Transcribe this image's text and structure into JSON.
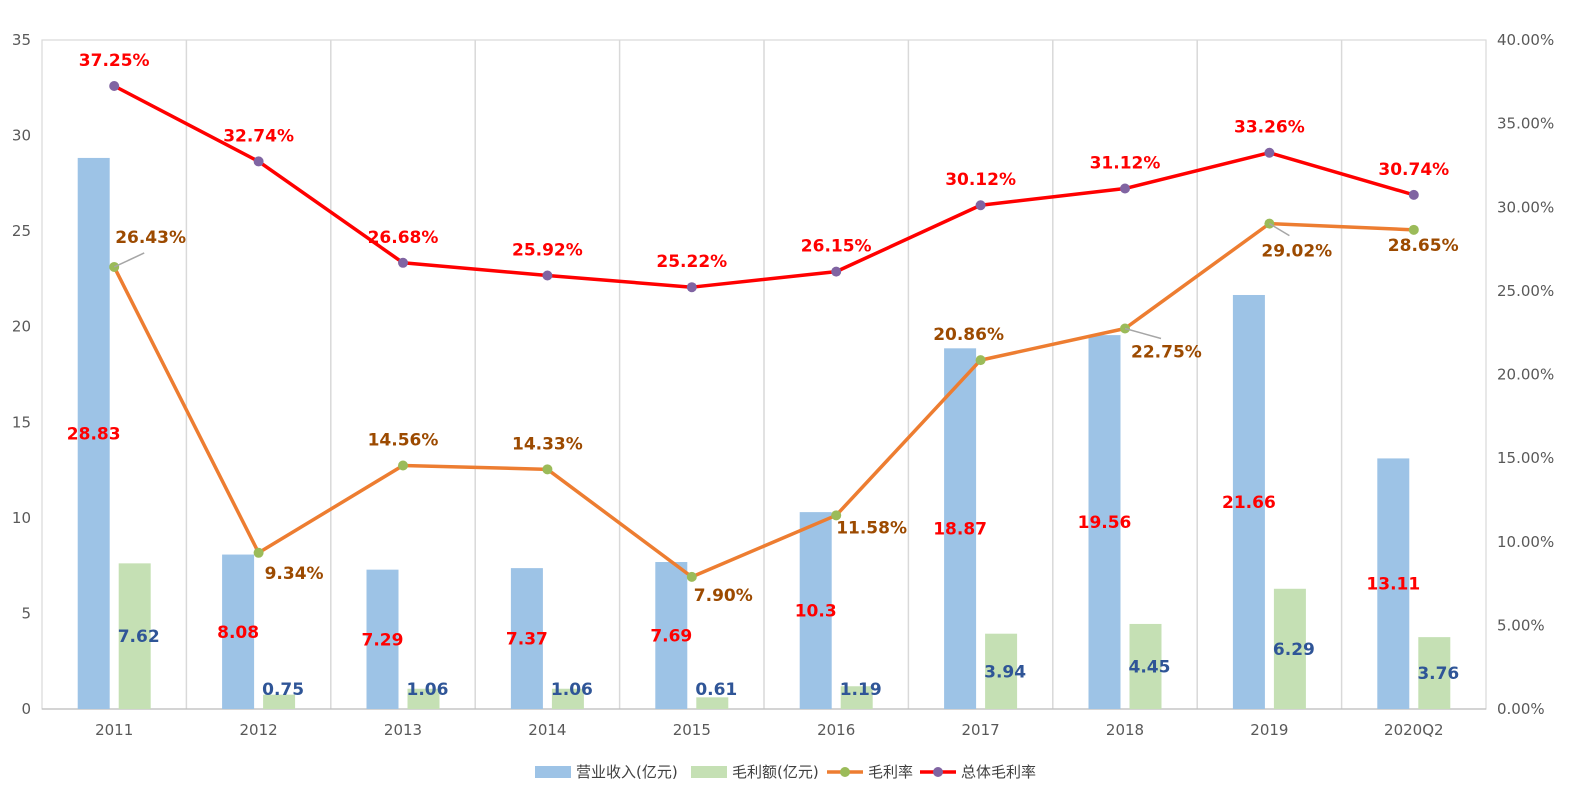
{
  "chart_data": {
    "type": "bar",
    "categories": [
      "2011",
      "2012",
      "2013",
      "2014",
      "2015",
      "2016",
      "2017",
      "2018",
      "2019",
      "2020Q2"
    ],
    "series": [
      {
        "name": "营业收入(亿元)",
        "kind": "bar",
        "axis": "left",
        "color": "#9DC3E6",
        "label_color": "#FF0000",
        "values": [
          28.83,
          8.08,
          7.29,
          7.37,
          7.69,
          10.3,
          18.87,
          19.56,
          21.66,
          13.11
        ],
        "labels": [
          "28.83",
          "8.08",
          "7.29",
          "7.37",
          "7.69",
          "10.3",
          "18.87",
          "19.56",
          "21.66",
          "13.11"
        ]
      },
      {
        "name": "毛利额(亿元)",
        "kind": "bar",
        "axis": "left",
        "color": "#C5E0B4",
        "label_color": "#2F5597",
        "values": [
          7.62,
          0.75,
          1.06,
          1.06,
          0.61,
          1.19,
          3.94,
          4.45,
          6.29,
          3.76
        ],
        "labels": [
          "7.62",
          "0.75",
          "1.06",
          "1.06",
          "0.61",
          "1.19",
          "3.94",
          "4.45",
          "6.29",
          "3.76"
        ]
      },
      {
        "name": "毛利率",
        "kind": "line",
        "axis": "right",
        "color": "#ED7D31",
        "marker_color": "#9BBB59",
        "label_color": "#9C4A00",
        "values": [
          26.43,
          9.34,
          14.56,
          14.33,
          7.9,
          11.58,
          20.86,
          22.75,
          29.02,
          28.65
        ],
        "labels": [
          "26.43%",
          "9.34%",
          "14.56%",
          "14.33%",
          "7.90%",
          "11.58%",
          "20.86%",
          "22.75%",
          "29.02%",
          "28.65%"
        ]
      },
      {
        "name": "总体毛利率",
        "kind": "line",
        "axis": "right",
        "color": "#FF0000",
        "marker_color": "#8064A2",
        "label_color": "#FF0000",
        "values": [
          37.25,
          32.74,
          26.68,
          25.92,
          25.22,
          26.15,
          30.12,
          31.12,
          33.26,
          30.74
        ],
        "labels": [
          "37.25%",
          "32.74%",
          "26.68%",
          "25.92%",
          "25.22%",
          "26.15%",
          "30.12%",
          "31.12%",
          "33.26%",
          "30.74%"
        ]
      }
    ],
    "y_left": {
      "min": 0,
      "max": 35,
      "step": 5,
      "ticks": [
        "0",
        "5",
        "10",
        "15",
        "20",
        "25",
        "30",
        "35"
      ]
    },
    "y_right": {
      "min": 0,
      "max": 40,
      "step": 5,
      "ticks": [
        "0.00%",
        "5.00%",
        "10.00%",
        "15.00%",
        "20.00%",
        "25.00%",
        "30.00%",
        "35.00%",
        "40.00%"
      ]
    },
    "grid": "vertical",
    "legend_position": "bottom"
  }
}
